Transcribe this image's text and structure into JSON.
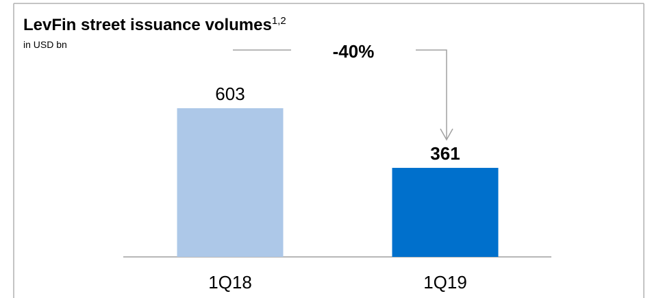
{
  "chart_data": {
    "type": "bar",
    "title": "LevFin street issuance volumes",
    "title_note": "1,2",
    "subtitle": "in USD bn",
    "annotation": "-40%",
    "categories": [
      "1Q18",
      "1Q19"
    ],
    "values": [
      603,
      361
    ],
    "colors": [
      "#adc8e8",
      "#0070cc"
    ],
    "ylim": [
      0,
      700
    ]
  }
}
